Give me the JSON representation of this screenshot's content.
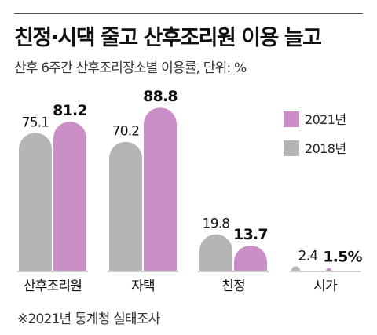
{
  "title": "친정·시댁 줄고 산후조리원 이용 늘고",
  "subtitle": "산후 6주간 산후조리장소별 이용률, 단위: %",
  "source_note": "※2021년 통계청 실태조사",
  "colors": {
    "series_2018": "#b5b5b5",
    "series_2021": "#cc8ec6",
    "axis": "#999999",
    "text": "#222222"
  },
  "chart_data": {
    "type": "bar",
    "categories": [
      "산후조리원",
      "자택",
      "친정",
      "시가"
    ],
    "series": [
      {
        "name": "2018년",
        "values": [
          75.1,
          70.2,
          19.8,
          2.4
        ],
        "labels": [
          "75.1",
          "70.2",
          "19.8",
          "2.4"
        ]
      },
      {
        "name": "2021년",
        "values": [
          81.2,
          88.8,
          13.7,
          1.5
        ],
        "labels": [
          "81.2",
          "88.8",
          "13.7",
          "1.5%"
        ]
      }
    ],
    "legend": [
      "2021년",
      "2018년"
    ],
    "legend_position": "top-right",
    "ylim": [
      0,
      100
    ],
    "grid": false,
    "xlabel": "",
    "ylabel": ""
  }
}
